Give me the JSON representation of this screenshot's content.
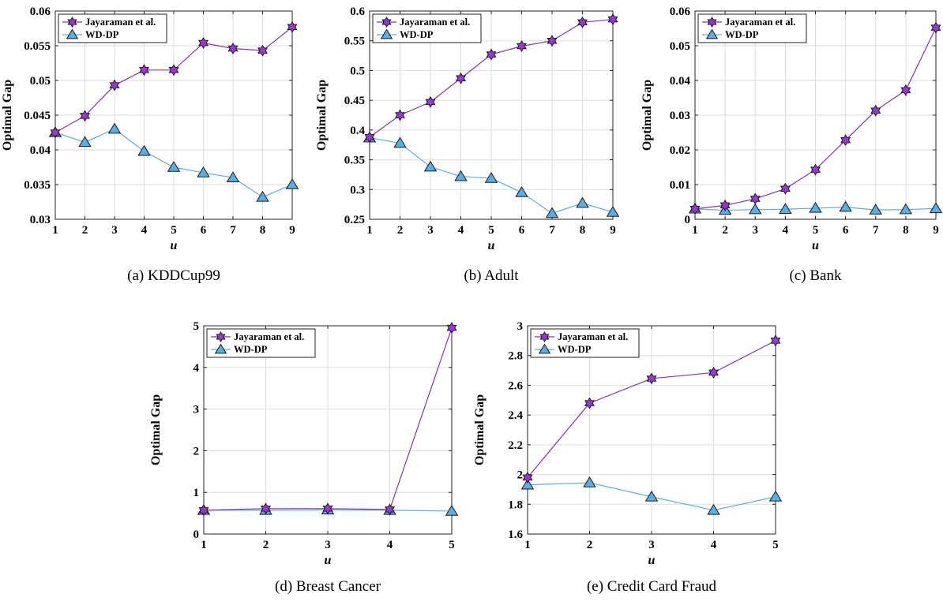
{
  "legend_labels": [
    "Jayaraman et al.",
    "WD-DP"
  ],
  "colors": {
    "jayaraman": "#9a35d6",
    "jayaraman_line": "#8a2fbf",
    "wddp": "#5aaee6",
    "wddp_line": "#5aaee6",
    "grid": "#dedede"
  },
  "chart_data": [
    {
      "type": "line",
      "caption": "(a) KDDCup99",
      "xlabel": "u",
      "ylabel": "Optimal Gap",
      "x": [
        1,
        2,
        3,
        4,
        5,
        6,
        7,
        8,
        9
      ],
      "xlim": [
        1,
        9
      ],
      "ylim": [
        0.03,
        0.06
      ],
      "yticks": [
        0.03,
        0.035,
        0.04,
        0.045,
        0.05,
        0.055,
        0.06
      ],
      "ytick_labels": [
        "0.03",
        "0.035",
        "0.04",
        "0.045",
        "0.05",
        "0.055",
        "0.06"
      ],
      "grid": true,
      "legend_position": "top-left",
      "series": [
        {
          "name": "Jayaraman et al.",
          "values": [
            0.0425,
            0.0449,
            0.0493,
            0.0515,
            0.0515,
            0.0554,
            0.0546,
            0.0543,
            0.0577
          ]
        },
        {
          "name": "WD-DP",
          "values": [
            0.0425,
            0.0411,
            0.043,
            0.0398,
            0.0375,
            0.0367,
            0.036,
            0.0332,
            0.035
          ]
        }
      ]
    },
    {
      "type": "line",
      "caption": "(b) Adult",
      "xlabel": "u",
      "ylabel": "Optimal Gap",
      "x": [
        1,
        2,
        3,
        4,
        5,
        6,
        7,
        8,
        9
      ],
      "xlim": [
        1,
        9
      ],
      "ylim": [
        0.25,
        0.6
      ],
      "yticks": [
        0.25,
        0.3,
        0.35,
        0.4,
        0.45,
        0.5,
        0.55,
        0.6
      ],
      "ytick_labels": [
        "0.25",
        "0.3",
        "0.35",
        "0.4",
        "0.45",
        "0.5",
        "0.55",
        "0.6"
      ],
      "grid": true,
      "legend_position": "top-left",
      "series": [
        {
          "name": "Jayaraman et al.",
          "values": [
            0.388,
            0.425,
            0.447,
            0.487,
            0.527,
            0.541,
            0.55,
            0.581,
            0.586
          ]
        },
        {
          "name": "WD-DP",
          "values": [
            0.387,
            0.378,
            0.338,
            0.322,
            0.319,
            0.295,
            0.26,
            0.277,
            0.262
          ]
        }
      ]
    },
    {
      "type": "line",
      "caption": "(c) Bank",
      "xlabel": "u",
      "ylabel": "Optimal Gap",
      "x": [
        1,
        2,
        3,
        4,
        5,
        6,
        7,
        8,
        9
      ],
      "xlim": [
        1,
        9
      ],
      "ylim": [
        0,
        0.06
      ],
      "yticks": [
        0,
        0.01,
        0.02,
        0.03,
        0.04,
        0.05,
        0.06
      ],
      "ytick_labels": [
        "0",
        "0.01",
        "0.02",
        "0.03",
        "0.04",
        "0.05",
        "0.06"
      ],
      "grid": true,
      "legend_position": "top-left",
      "series": [
        {
          "name": "Jayaraman et al.",
          "values": [
            0.003,
            0.004,
            0.0059,
            0.0088,
            0.0143,
            0.0228,
            0.0313,
            0.0372,
            0.0552
          ]
        },
        {
          "name": "WD-DP",
          "values": [
            0.003,
            0.0026,
            0.0028,
            0.0029,
            0.0032,
            0.0035,
            0.0027,
            0.0028,
            0.0031
          ]
        }
      ]
    },
    {
      "type": "line",
      "caption": "(d) Breast Cancer",
      "xlabel": "u",
      "ylabel": "Optimal Gap",
      "x": [
        1,
        2,
        3,
        4,
        5
      ],
      "xlim": [
        1,
        5
      ],
      "ylim": [
        0,
        5
      ],
      "yticks": [
        0,
        1,
        2,
        3,
        4,
        5
      ],
      "ytick_labels": [
        "0",
        "1",
        "2",
        "3",
        "4",
        "5"
      ],
      "grid": true,
      "legend_position": "top-left",
      "series": [
        {
          "name": "Jayaraman et al.",
          "values": [
            0.57,
            0.61,
            0.61,
            0.59,
            4.95
          ]
        },
        {
          "name": "WD-DP",
          "values": [
            0.57,
            0.57,
            0.58,
            0.57,
            0.55
          ]
        }
      ]
    },
    {
      "type": "line",
      "caption": "(e) Credit Card Fraud",
      "xlabel": "u",
      "ylabel": "Optimal Gap",
      "x": [
        1,
        2,
        3,
        4,
        5
      ],
      "xlim": [
        1,
        5
      ],
      "ylim": [
        1.6,
        3.0
      ],
      "yticks": [
        1.6,
        1.8,
        2.0,
        2.2,
        2.4,
        2.6,
        2.8,
        3.0
      ],
      "ytick_labels": [
        "1.6",
        "1.8",
        "2",
        "2.2",
        "2.4",
        "2.6",
        "2.8",
        "3"
      ],
      "grid": true,
      "legend_position": "top-left",
      "series": [
        {
          "name": "Jayaraman et al.",
          "values": [
            1.98,
            2.48,
            2.645,
            2.685,
            2.9
          ]
        },
        {
          "name": "WD-DP",
          "values": [
            1.93,
            1.945,
            1.85,
            1.76,
            1.85
          ]
        }
      ]
    }
  ]
}
